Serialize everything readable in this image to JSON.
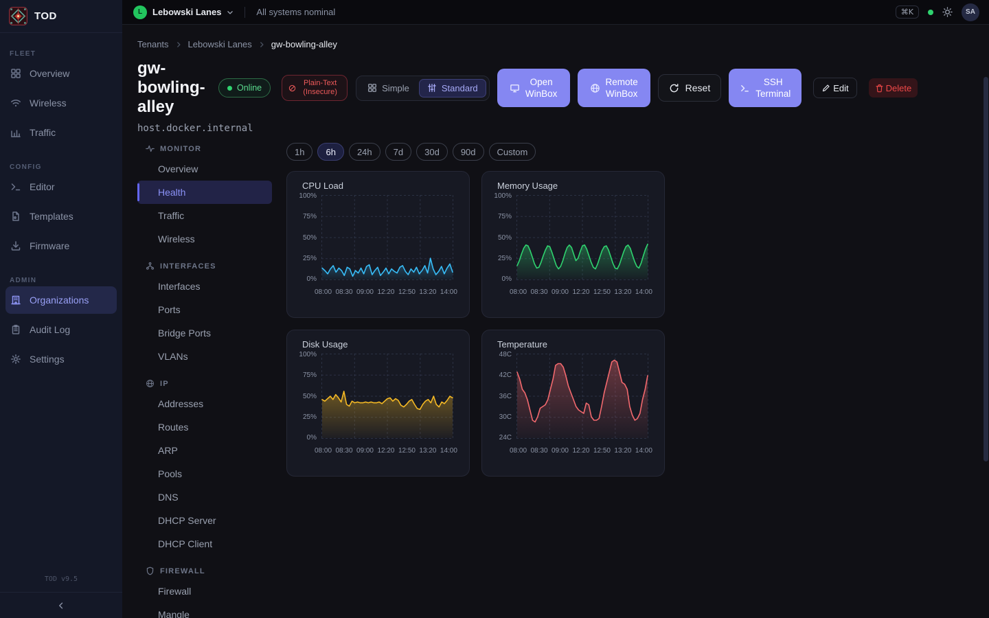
{
  "app": {
    "name": "TOD",
    "version": "TOD v9.5"
  },
  "topbar": {
    "tenant": "Lebowski Lanes",
    "tenant_initial": "L",
    "status_text": "All systems nominal",
    "shortcut": "⌘K",
    "user_initials": "SA"
  },
  "sidebar": {
    "sections": [
      {
        "label": "FLEET",
        "items": [
          {
            "label": "Overview",
            "icon": "grid"
          },
          {
            "label": "Wireless",
            "icon": "wifi"
          },
          {
            "label": "Traffic",
            "icon": "chart"
          }
        ]
      },
      {
        "label": "CONFIG",
        "items": [
          {
            "label": "Editor",
            "icon": "terminal"
          },
          {
            "label": "Templates",
            "icon": "file"
          },
          {
            "label": "Firmware",
            "icon": "download"
          }
        ]
      },
      {
        "label": "ADMIN",
        "items": [
          {
            "label": "Organizations",
            "icon": "building",
            "active": true
          },
          {
            "label": "Audit Log",
            "icon": "clipboard"
          },
          {
            "label": "Settings",
            "icon": "gear"
          }
        ]
      }
    ]
  },
  "breadcrumb": {
    "items": [
      "Tenants",
      "Lebowski Lanes",
      "gw-bowling-alley"
    ]
  },
  "device": {
    "name": "gw-bowling-alley",
    "status": "Online",
    "security_badge": "Plain-Text (Insecure)",
    "host": "host.docker.internal"
  },
  "view_toggle": {
    "simple": "Simple",
    "standard": "Standard",
    "active": "Standard"
  },
  "actions": {
    "open_winbox": "Open WinBox",
    "remote_winbox": "Remote WinBox",
    "reset": "Reset",
    "ssh_terminal": "SSH Terminal",
    "edit": "Edit",
    "delete": "Delete"
  },
  "subnav": {
    "sections": [
      {
        "label": "MONITOR",
        "icon": "activity",
        "items": [
          {
            "label": "Overview"
          },
          {
            "label": "Health",
            "active": true
          },
          {
            "label": "Traffic"
          },
          {
            "label": "Wireless"
          }
        ]
      },
      {
        "label": "INTERFACES",
        "icon": "network",
        "items": [
          {
            "label": "Interfaces"
          },
          {
            "label": "Ports"
          },
          {
            "label": "Bridge Ports"
          },
          {
            "label": "VLANs"
          }
        ]
      },
      {
        "label": "IP",
        "icon": "globe",
        "items": [
          {
            "label": "Addresses"
          },
          {
            "label": "Routes"
          },
          {
            "label": "ARP"
          },
          {
            "label": "Pools"
          },
          {
            "label": "DNS"
          },
          {
            "label": "DHCP Server"
          },
          {
            "label": "DHCP Client"
          }
        ]
      },
      {
        "label": "FIREWALL",
        "icon": "shield",
        "items": [
          {
            "label": "Firewall"
          },
          {
            "label": "Mangle"
          }
        ]
      }
    ]
  },
  "time_ranges": {
    "options": [
      "1h",
      "6h",
      "24h",
      "7d",
      "30d",
      "90d",
      "Custom"
    ],
    "active": "6h"
  },
  "chart_data": [
    {
      "type": "line",
      "title": "CPU Load",
      "color": "#38bdf8",
      "ylabel": "percent",
      "y_range": [
        0,
        100
      ],
      "y_ticks": [
        "100%",
        "75%",
        "50%",
        "25%",
        "0%"
      ],
      "x_ticks": [
        "08:00",
        "08:30",
        "09:00",
        "12:20",
        "12:50",
        "13:20",
        "14:00"
      ],
      "grid": "dashed",
      "values": [
        13,
        10,
        6,
        12,
        16,
        8,
        13,
        10,
        4,
        14,
        12,
        3,
        10,
        7,
        13,
        6,
        15,
        17,
        5,
        10,
        14,
        4,
        8,
        13,
        6,
        12,
        9,
        7,
        14,
        16,
        9,
        5,
        12,
        8,
        14,
        6,
        10,
        16,
        7,
        25,
        12,
        5,
        9,
        15,
        6,
        13,
        18,
        8
      ]
    },
    {
      "type": "line",
      "title": "Memory Usage",
      "color": "#2fd36f",
      "ylabel": "percent",
      "y_range": [
        0,
        100
      ],
      "y_ticks": [
        "100%",
        "75%",
        "50%",
        "25%",
        "0%"
      ],
      "x_ticks": [
        "08:00",
        "08:30",
        "09:00",
        "12:20",
        "12:50",
        "13:20",
        "14:00"
      ],
      "grid": "dashed",
      "values": [
        16,
        22,
        30,
        37,
        41,
        40,
        34,
        26,
        18,
        13,
        14,
        20,
        28,
        35,
        40,
        39,
        32,
        24,
        16,
        12,
        15,
        22,
        31,
        38,
        41,
        38,
        30,
        22,
        25,
        33,
        40,
        41,
        36,
        28,
        20,
        14,
        12,
        18,
        26,
        34,
        39,
        40,
        35,
        27,
        19,
        13,
        12,
        17,
        25,
        33,
        39,
        41,
        37,
        29,
        21,
        15,
        13,
        19,
        28,
        36,
        42
      ]
    },
    {
      "type": "line",
      "title": "Disk Usage",
      "color": "#f5b924",
      "ylabel": "percent",
      "y_range": [
        0,
        100
      ],
      "y_ticks": [
        "100%",
        "75%",
        "50%",
        "25%",
        "0%"
      ],
      "x_ticks": [
        "08:00",
        "08:30",
        "09:00",
        "12:20",
        "12:50",
        "13:20",
        "14:00"
      ],
      "grid": "dashed",
      "values": [
        46,
        44,
        47,
        50,
        46,
        52,
        48,
        43,
        56,
        40,
        38,
        44,
        42,
        43,
        42,
        42,
        43,
        42,
        43,
        42,
        42,
        43,
        41,
        44,
        47,
        48,
        44,
        47,
        45,
        39,
        37,
        40,
        44,
        46,
        40,
        35,
        34,
        40,
        44,
        46,
        42,
        50,
        40,
        37,
        43,
        41,
        45,
        50,
        48
      ]
    },
    {
      "type": "line",
      "title": "Temperature",
      "color": "#f2696e",
      "ylabel": "celsius",
      "y_range": [
        24,
        48
      ],
      "y_ticks": [
        "48C",
        "42C",
        "36C",
        "30C",
        "24C"
      ],
      "x_ticks": [
        "08:00",
        "08:30",
        "09:00",
        "12:20",
        "12:50",
        "13:20",
        "14:00"
      ],
      "grid": "dashed",
      "values": [
        43,
        41,
        38,
        37,
        35,
        32,
        29,
        28.5,
        30,
        32.5,
        33,
        33.5,
        35,
        38,
        41,
        45,
        45.5,
        45.5,
        44.5,
        42,
        39,
        37,
        35,
        33,
        32,
        31.5,
        31,
        34,
        33.5,
        30,
        29,
        29,
        29.5,
        33,
        37,
        40,
        43,
        46,
        46.5,
        46,
        43,
        40,
        39.5,
        38,
        33,
        30.5,
        29,
        29.5,
        31,
        35,
        38,
        42
      ]
    }
  ]
}
